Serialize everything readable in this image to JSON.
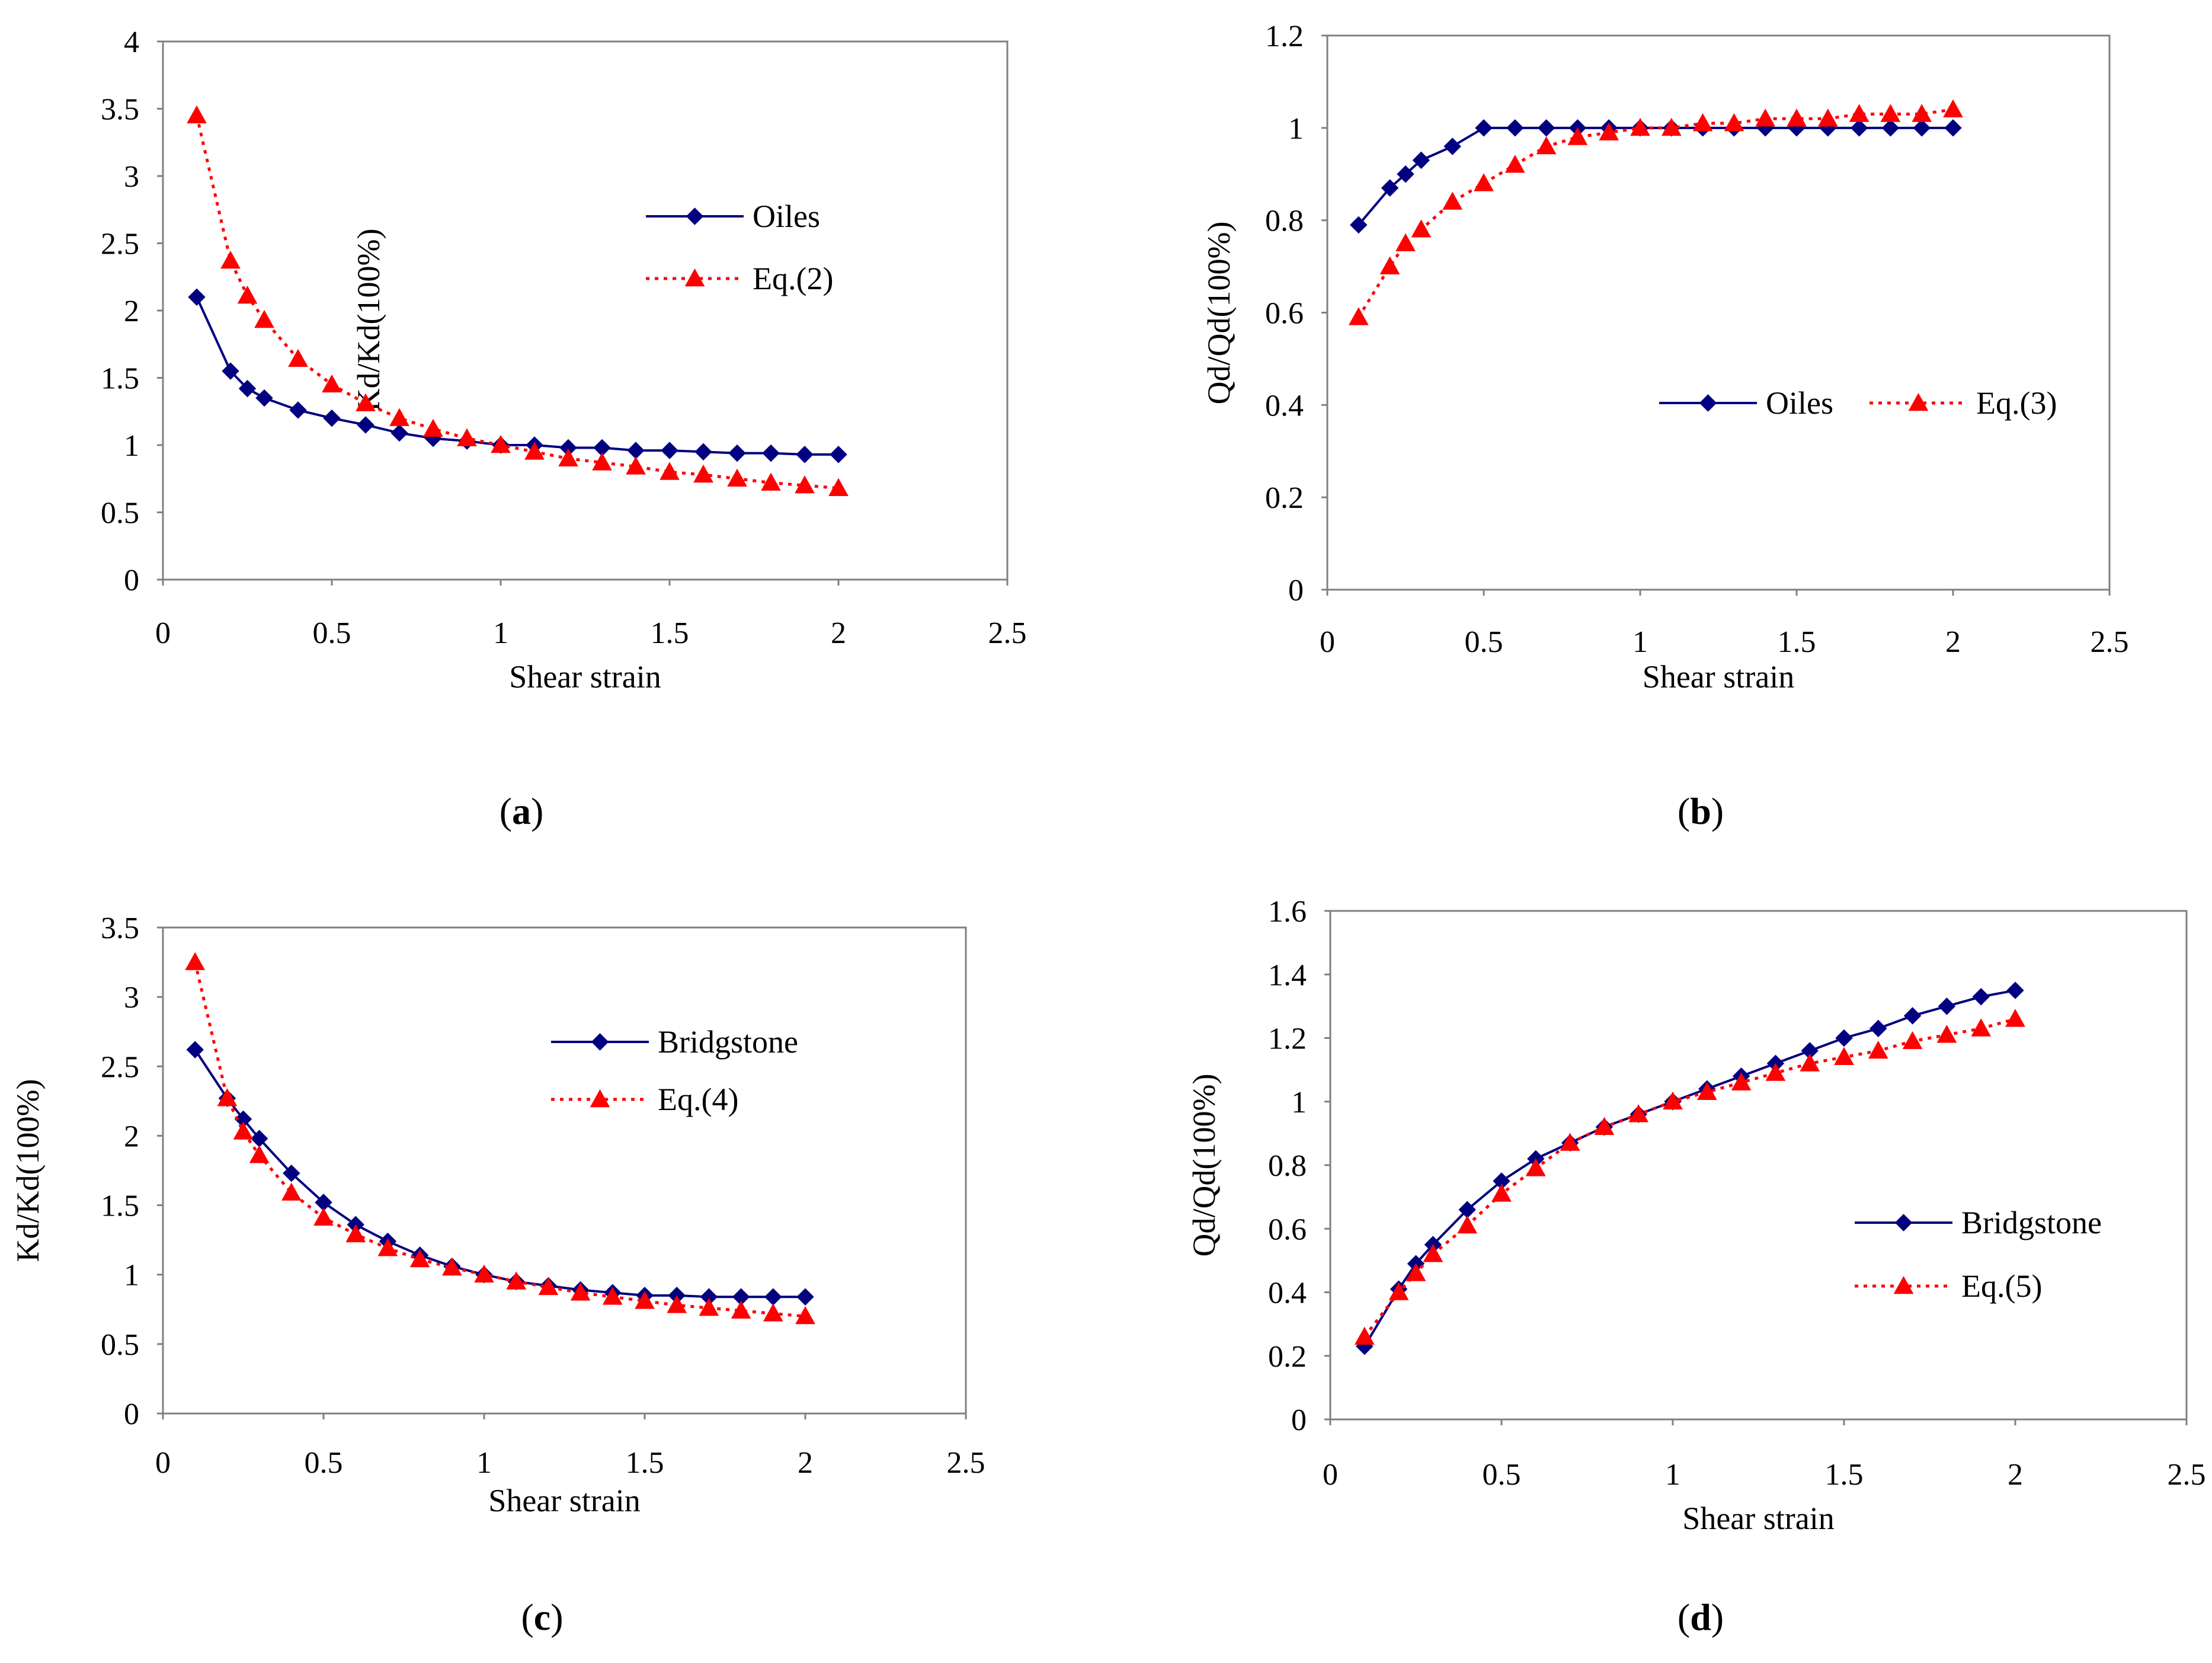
{
  "figure": {
    "panels": [
      "a",
      "b",
      "c",
      "d"
    ]
  },
  "chart_data": [
    {
      "id": "a",
      "type": "line",
      "caption_letter": "a",
      "title": "",
      "xlabel": "Shear strain",
      "ylabel": "Kd/Kd(100%)",
      "xlim": [
        0,
        2.5
      ],
      "ylim": [
        0,
        4
      ],
      "xticks": [
        0,
        0.5,
        1,
        1.5,
        2,
        2.5
      ],
      "xtick_labels": [
        "0",
        "0.5",
        "1",
        "1.5",
        "2",
        "2.5"
      ],
      "yticks": [
        0,
        0.5,
        1,
        1.5,
        2,
        2.5,
        3,
        3.5,
        4
      ],
      "ytick_labels": [
        "0",
        "0.5",
        "1",
        "1.5",
        "2",
        "2.5",
        "3",
        "3.5",
        "4"
      ],
      "grid": false,
      "legend_position": "right-upper",
      "x": [
        0.1,
        0.2,
        0.25,
        0.3,
        0.4,
        0.5,
        0.6,
        0.7,
        0.8,
        0.9,
        1.0,
        1.1,
        1.2,
        1.3,
        1.4,
        1.5,
        1.6,
        1.7,
        1.8,
        1.9,
        2.0
      ],
      "series": [
        {
          "name": "Oiles",
          "style": "solid",
          "marker": "diamond",
          "color": "#000080",
          "values": [
            2.1,
            1.55,
            1.42,
            1.35,
            1.26,
            1.2,
            1.15,
            1.09,
            1.05,
            1.03,
            1.0,
            1.0,
            0.98,
            0.98,
            0.96,
            0.96,
            0.95,
            0.94,
            0.94,
            0.93,
            0.93
          ]
        },
        {
          "name": "Eq.(2)",
          "style": "dotted",
          "marker": "triangle",
          "color": "#ff0000",
          "values": [
            3.45,
            2.37,
            2.11,
            1.93,
            1.64,
            1.45,
            1.31,
            1.2,
            1.12,
            1.05,
            1.0,
            0.95,
            0.9,
            0.87,
            0.84,
            0.8,
            0.78,
            0.75,
            0.72,
            0.7,
            0.68
          ]
        }
      ]
    },
    {
      "id": "b",
      "type": "line",
      "caption_letter": "b",
      "title": "",
      "xlabel": "Shear strain",
      "ylabel": "Qd/Qd(100%)",
      "xlim": [
        0,
        2.5
      ],
      "ylim": [
        0,
        1.2
      ],
      "xticks": [
        0,
        0.5,
        1,
        1.5,
        2,
        2.5
      ],
      "xtick_labels": [
        "0",
        "0.5",
        "1",
        "1.5",
        "2",
        "2.5"
      ],
      "yticks": [
        0,
        0.2,
        0.4,
        0.6,
        0.8,
        1,
        1.2
      ],
      "ytick_labels": [
        "0",
        "0.2",
        "0.4",
        "0.6",
        "0.8",
        "1",
        "1.2"
      ],
      "grid": false,
      "legend_position": "center-right, horizontal",
      "x": [
        0.1,
        0.2,
        0.25,
        0.3,
        0.4,
        0.5,
        0.6,
        0.7,
        0.8,
        0.9,
        1.0,
        1.1,
        1.2,
        1.3,
        1.4,
        1.5,
        1.6,
        1.7,
        1.8,
        1.9,
        2.0
      ],
      "series": [
        {
          "name": "Oiles",
          "style": "solid",
          "marker": "diamond",
          "color": "#000080",
          "values": [
            0.79,
            0.87,
            0.9,
            0.93,
            0.96,
            1.0,
            1.0,
            1.0,
            1.0,
            1.0,
            1.0,
            1.0,
            1.0,
            1.0,
            1.0,
            1.0,
            1.0,
            1.0,
            1.0,
            1.0,
            1.0
          ]
        },
        {
          "name": "Eq.(3)",
          "style": "dotted",
          "marker": "triangle",
          "color": "#ff0000",
          "values": [
            0.59,
            0.7,
            0.75,
            0.78,
            0.84,
            0.88,
            0.92,
            0.96,
            0.98,
            0.99,
            1.0,
            1.0,
            1.01,
            1.01,
            1.02,
            1.02,
            1.02,
            1.03,
            1.03,
            1.03,
            1.04
          ]
        }
      ]
    },
    {
      "id": "c",
      "type": "line",
      "caption_letter": "c",
      "title": "",
      "xlabel": "Shear strain",
      "ylabel": "Kd/Kd(100%)",
      "xlim": [
        0,
        2.5
      ],
      "ylim": [
        0,
        3.5
      ],
      "xticks": [
        0,
        0.5,
        1,
        1.5,
        2,
        2.5
      ],
      "xtick_labels": [
        "0",
        "0.5",
        "1",
        "1.5",
        "2",
        "2.5"
      ],
      "yticks": [
        0,
        0.5,
        1,
        1.5,
        2,
        2.5,
        3,
        3.5
      ],
      "ytick_labels": [
        "0",
        "0.5",
        "1",
        "1.5",
        "2",
        "2.5",
        "3",
        "3.5"
      ],
      "grid": false,
      "legend_position": "right-upper",
      "x": [
        0.1,
        0.2,
        0.25,
        0.3,
        0.4,
        0.5,
        0.6,
        0.7,
        0.8,
        0.9,
        1.0,
        1.1,
        1.2,
        1.3,
        1.4,
        1.5,
        1.6,
        1.7,
        1.8,
        1.9,
        2.0
      ],
      "series": [
        {
          "name": "Bridgstone",
          "style": "solid",
          "marker": "diamond",
          "color": "#000080",
          "values": [
            2.62,
            2.27,
            2.12,
            1.98,
            1.73,
            1.52,
            1.36,
            1.24,
            1.14,
            1.06,
            1.0,
            0.95,
            0.92,
            0.89,
            0.87,
            0.85,
            0.85,
            0.84,
            0.84,
            0.84,
            0.84
          ]
        },
        {
          "name": "Eq.(4)",
          "style": "dotted",
          "marker": "triangle",
          "color": "#ff0000",
          "values": [
            3.25,
            2.27,
            2.03,
            1.86,
            1.59,
            1.41,
            1.29,
            1.19,
            1.11,
            1.05,
            1.0,
            0.95,
            0.91,
            0.87,
            0.84,
            0.81,
            0.78,
            0.76,
            0.74,
            0.72,
            0.7
          ]
        }
      ]
    },
    {
      "id": "d",
      "type": "line",
      "caption_letter": "d",
      "title": "",
      "xlabel": "Shear strain",
      "ylabel": "Qd/Qd(100%)",
      "xlim": [
        0,
        2.5
      ],
      "ylim": [
        0,
        1.6
      ],
      "xticks": [
        0,
        0.5,
        1,
        1.5,
        2,
        2.5
      ],
      "xtick_labels": [
        "0",
        "0.5",
        "1",
        "1.5",
        "2",
        "2.5"
      ],
      "yticks": [
        0,
        0.2,
        0.4,
        0.6,
        0.8,
        1,
        1.2,
        1.4,
        1.6
      ],
      "ytick_labels": [
        "0",
        "0.2",
        "0.4",
        "0.6",
        "0.8",
        "1",
        "1.2",
        "1.4",
        "1.6"
      ],
      "grid": false,
      "legend_position": "right-lower",
      "x": [
        0.1,
        0.2,
        0.25,
        0.3,
        0.4,
        0.5,
        0.6,
        0.7,
        0.8,
        0.9,
        1.0,
        1.1,
        1.2,
        1.3,
        1.4,
        1.5,
        1.6,
        1.7,
        1.8,
        1.9,
        2.0
      ],
      "series": [
        {
          "name": "Bridgstone",
          "style": "solid",
          "marker": "diamond",
          "color": "#000080",
          "values": [
            0.23,
            0.41,
            0.49,
            0.55,
            0.66,
            0.75,
            0.82,
            0.87,
            0.92,
            0.96,
            1.0,
            1.04,
            1.08,
            1.12,
            1.16,
            1.2,
            1.23,
            1.27,
            1.3,
            1.33,
            1.35
          ]
        },
        {
          "name": "Eq.(5)",
          "style": "dotted",
          "marker": "triangle",
          "color": "#ff0000",
          "values": [
            0.26,
            0.4,
            0.46,
            0.52,
            0.61,
            0.71,
            0.79,
            0.87,
            0.92,
            0.96,
            1.0,
            1.03,
            1.06,
            1.09,
            1.12,
            1.14,
            1.16,
            1.19,
            1.21,
            1.23,
            1.26
          ]
        }
      ]
    }
  ]
}
